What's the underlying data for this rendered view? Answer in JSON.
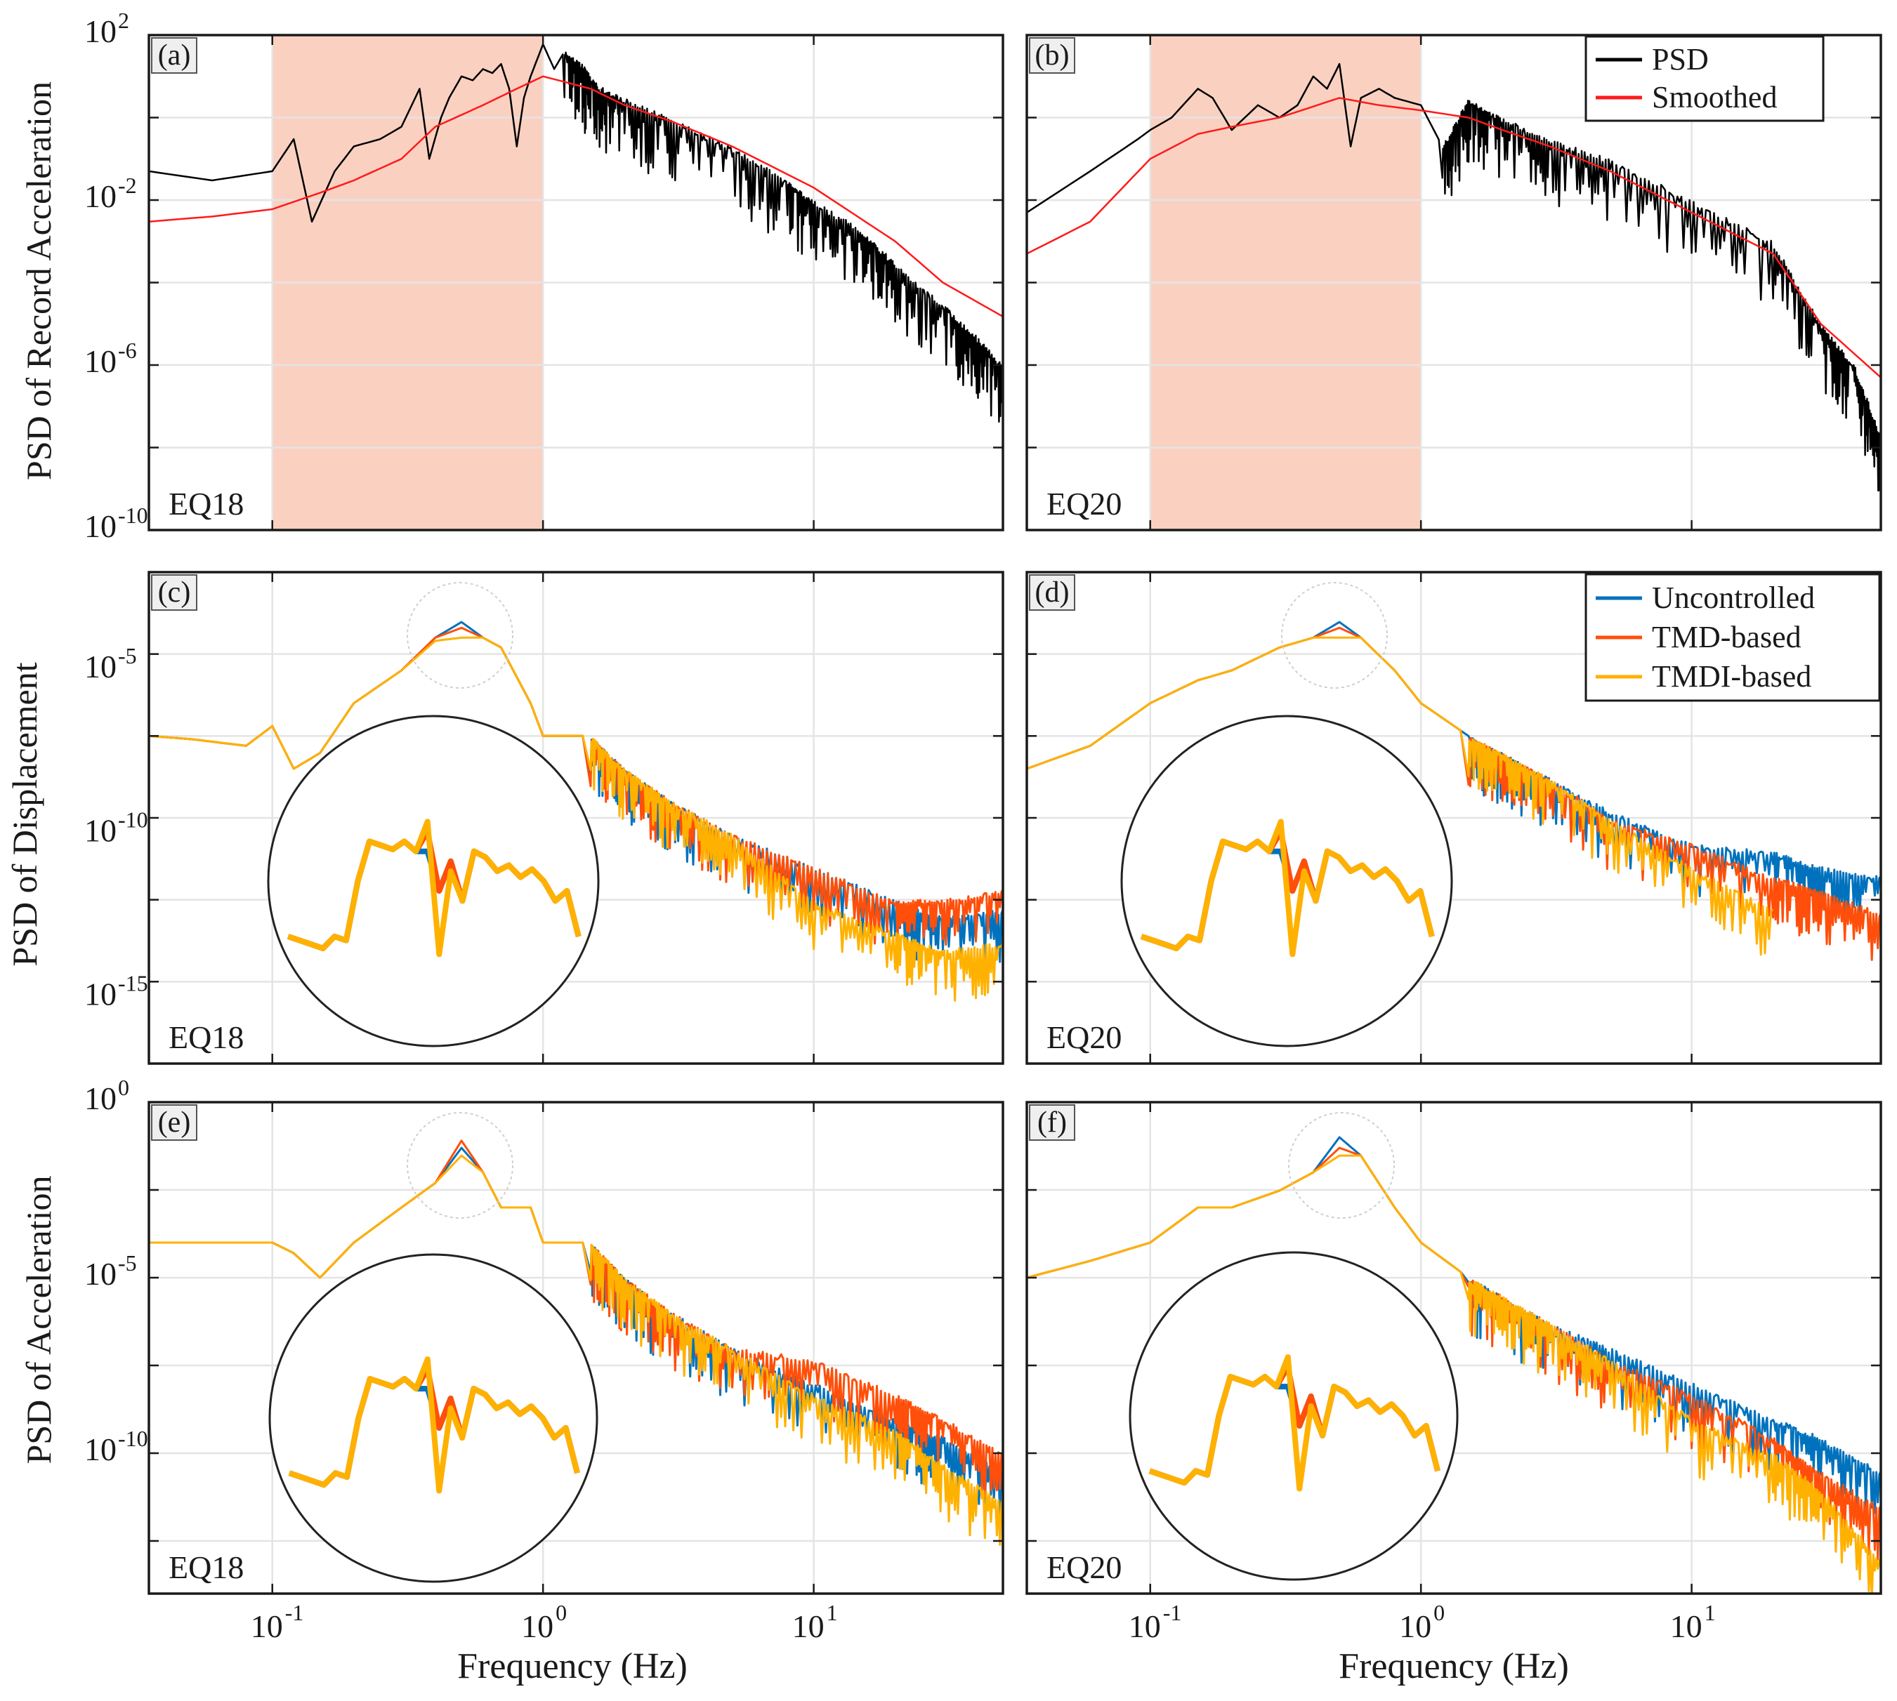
{
  "figure": {
    "ylabels": {
      "row1": "PSD of Record Acceleration",
      "row2": "PSD of Displacement",
      "row3": "PSD of Acceleration"
    },
    "xlabel": "Frequency (Hz)"
  },
  "legends": {
    "record": [
      {
        "name": "PSD",
        "color": "#000000"
      },
      {
        "name": "Smoothed",
        "color": "#ff1a1a"
      }
    ],
    "response": [
      {
        "name": "Uncontrolled",
        "color": "#0072bd"
      },
      {
        "name": "TMD-based",
        "color": "#ff4f0a"
      },
      {
        "name": "TMDI-based",
        "color": "#ffb100"
      }
    ]
  },
  "shading_color": "#f9c5b2",
  "chart_data": [
    {
      "panel": "a",
      "label": "(a)",
      "event": "EQ18",
      "type": "line",
      "ylabel": "PSD of Record Acceleration",
      "xscale": "log",
      "yscale": "log",
      "xlim": [
        0.035,
        50
      ],
      "ylim": [
        1e-10,
        100
      ],
      "ytick_base": "10",
      "ytick_exps": [
        "2",
        "-2",
        "-6",
        "-10"
      ],
      "yticks": [
        100,
        0.01,
        1e-06,
        1e-10
      ],
      "xtick_exps": [
        "-1",
        "0",
        "1"
      ],
      "xticks": [
        0.1,
        1,
        10
      ],
      "shaded_band": [
        0.1,
        1
      ],
      "series": [
        {
          "name": "PSD",
          "x": [
            0.035,
            0.06,
            0.08,
            0.1,
            0.12,
            0.14,
            0.17,
            0.2,
            0.25,
            0.3,
            0.35,
            0.38,
            0.42,
            0.45,
            0.5,
            0.55,
            0.6,
            0.65,
            0.7,
            0.75,
            0.8,
            0.85,
            0.9,
            1.0,
            1.1,
            1.2,
            1.4,
            1.6,
            2,
            3,
            5,
            8,
            10,
            15,
            20,
            30,
            40,
            50
          ],
          "y": [
            0.05,
            0.03,
            0.04,
            0.05,
            0.3,
            0.003,
            0.05,
            0.2,
            0.3,
            0.6,
            5,
            0.1,
            1,
            3,
            10,
            8,
            15,
            12,
            20,
            5,
            0.2,
            3,
            10,
            60,
            15,
            40,
            20,
            6,
            3,
            1,
            0.2,
            0.03,
            0.01,
            0.002,
            0.0003,
            3e-05,
            5e-06,
            1e-06
          ]
        },
        {
          "name": "Smoothed",
          "x": [
            0.035,
            0.06,
            0.1,
            0.15,
            0.2,
            0.3,
            0.4,
            0.6,
            0.8,
            1.0,
            1.5,
            2,
            3,
            5,
            10,
            20,
            30,
            50
          ],
          "y": [
            0.003,
            0.004,
            0.006,
            0.015,
            0.03,
            0.1,
            0.6,
            2,
            5,
            10,
            5,
            2,
            0.8,
            0.2,
            0.02,
            0.001,
            0.0001,
            1.5e-05
          ]
        }
      ]
    },
    {
      "panel": "b",
      "label": "(b)",
      "event": "EQ20",
      "type": "line",
      "ylabel": "PSD of Record Acceleration",
      "xscale": "log",
      "yscale": "log",
      "xlim": [
        0.035,
        50
      ],
      "ylim": [
        1e-10,
        100
      ],
      "shaded_band": [
        0.1,
        1
      ],
      "series": [
        {
          "name": "PSD",
          "x": [
            0.035,
            0.06,
            0.09,
            0.1,
            0.12,
            0.15,
            0.17,
            0.2,
            0.25,
            0.3,
            0.35,
            0.4,
            0.45,
            0.5,
            0.55,
            0.6,
            0.7,
            0.8,
            1.0,
            1.2,
            1.5,
            2,
            3,
            5,
            10,
            20,
            30,
            40,
            50
          ],
          "y": [
            0.005,
            0.05,
            0.3,
            0.5,
            1,
            5,
            3,
            0.5,
            2,
            1,
            2,
            10,
            5,
            20,
            0.2,
            3,
            5,
            3,
            2,
            0.2,
            3,
            1,
            0.3,
            0.1,
            0.01,
            0.001,
            1e-05,
            1e-06,
            2e-08
          ]
        },
        {
          "name": "Smoothed",
          "x": [
            0.035,
            0.06,
            0.1,
            0.15,
            0.2,
            0.3,
            0.5,
            0.7,
            1.0,
            1.5,
            2,
            3,
            5,
            10,
            20,
            30,
            50
          ],
          "y": [
            0.0005,
            0.003,
            0.1,
            0.4,
            0.6,
            1,
            3,
            2,
            1.5,
            1,
            0.5,
            0.2,
            0.05,
            0.005,
            0.0005,
            1e-05,
            5e-07
          ]
        }
      ]
    },
    {
      "panel": "c",
      "label": "(c)",
      "event": "EQ18",
      "type": "line",
      "ylabel": "PSD of Displacement",
      "xscale": "log",
      "yscale": "log",
      "xlim": [
        0.035,
        50
      ],
      "ylim": [
        1e-17,
        0.01
      ],
      "ytick_base": "10",
      "ytick_exps": [
        "-5",
        "-10",
        "-15"
      ],
      "yticks": [
        1e-05,
        1e-10,
        1e-15
      ],
      "series": [
        {
          "name": "Uncontrolled",
          "x": [
            0.035,
            0.05,
            0.08,
            0.1,
            0.12,
            0.15,
            0.2,
            0.3,
            0.4,
            0.5,
            0.6,
            0.7,
            0.9,
            1.0,
            1.5,
            2,
            3,
            5,
            10,
            20,
            30,
            50
          ],
          "y": [
            1e-07,
            8e-08,
            5e-08,
            2e-07,
            1e-08,
            3e-08,
            1e-06,
            1e-05,
            0.0001,
            0.0003,
            0.0001,
            5e-05,
            1e-06,
            1e-07,
            1e-07,
            1e-08,
            1e-09,
            1e-10,
            1e-11,
            1e-12,
            3e-13,
            5e-13
          ]
        },
        {
          "name": "TMD-based",
          "x": [
            0.035,
            0.05,
            0.08,
            0.1,
            0.12,
            0.15,
            0.2,
            0.3,
            0.4,
            0.5,
            0.6,
            0.7,
            0.9,
            1.0,
            1.5,
            2,
            3,
            5,
            10,
            20,
            30,
            50
          ],
          "y": [
            1e-07,
            8e-08,
            5e-08,
            2e-07,
            1e-08,
            3e-08,
            1e-06,
            1e-05,
            0.0001,
            0.0002,
            0.0001,
            5e-05,
            1e-06,
            1e-07,
            1e-07,
            1e-08,
            1e-09,
            1e-10,
            1e-11,
            1e-12,
            1e-12,
            2e-12
          ]
        },
        {
          "name": "TMDI-based",
          "x": [
            0.035,
            0.05,
            0.08,
            0.1,
            0.12,
            0.15,
            0.2,
            0.3,
            0.4,
            0.5,
            0.6,
            0.7,
            0.9,
            1.0,
            1.5,
            2,
            3,
            5,
            10,
            20,
            30,
            50
          ],
          "y": [
            1e-07,
            8e-08,
            5e-08,
            2e-07,
            1e-08,
            3e-08,
            1e-06,
            1e-05,
            8e-05,
            0.0001,
            0.0001,
            5e-05,
            1e-06,
            1e-07,
            1e-07,
            1e-08,
            1e-09,
            1e-10,
            1e-12,
            1e-13,
            3e-14,
            5e-14
          ]
        }
      ]
    },
    {
      "panel": "d",
      "label": "(d)",
      "event": "EQ20",
      "type": "line",
      "ylabel": "PSD of Displacement",
      "xscale": "log",
      "yscale": "log",
      "xlim": [
        0.035,
        50
      ],
      "ylim": [
        1e-17,
        0.01
      ],
      "series": [
        {
          "name": "Uncontrolled",
          "x": [
            0.035,
            0.06,
            0.1,
            0.15,
            0.2,
            0.3,
            0.4,
            0.5,
            0.6,
            0.8,
            1.0,
            1.5,
            2,
            3,
            5,
            10,
            20,
            30,
            50
          ],
          "y": [
            1e-08,
            5e-08,
            1e-06,
            5e-06,
            1e-05,
            5e-05,
            0.0001,
            0.0003,
            0.0001,
            1e-05,
            1e-06,
            1e-07,
            3e-08,
            5e-09,
            5e-10,
            5e-11,
            3e-11,
            1e-11,
            5e-12
          ]
        },
        {
          "name": "TMD-based",
          "x": [
            0.035,
            0.06,
            0.1,
            0.15,
            0.2,
            0.3,
            0.4,
            0.5,
            0.6,
            0.8,
            1.0,
            1.5,
            2,
            3,
            5,
            10,
            20,
            30,
            50
          ],
          "y": [
            1e-08,
            5e-08,
            1e-06,
            5e-06,
            1e-05,
            5e-05,
            0.0001,
            0.0002,
            0.0001,
            1e-05,
            1e-06,
            1e-07,
            3e-08,
            5e-09,
            3e-10,
            5e-11,
            5e-12,
            2e-12,
            4e-13
          ]
        },
        {
          "name": "TMDI-based",
          "x": [
            0.035,
            0.06,
            0.1,
            0.15,
            0.2,
            0.3,
            0.4,
            0.5,
            0.6,
            0.8,
            1.0,
            1.5,
            2,
            3,
            5,
            10,
            20
          ],
          "y": [
            1e-08,
            5e-08,
            1e-06,
            5e-06,
            1e-05,
            5e-05,
            0.0001,
            0.0001,
            0.0001,
            1e-05,
            1e-06,
            1e-07,
            3e-08,
            5e-09,
            3e-10,
            1e-11,
            5e-13
          ]
        }
      ]
    },
    {
      "panel": "e",
      "label": "(e)",
      "event": "EQ18",
      "type": "line",
      "ylabel": "PSD of Acceleration",
      "xscale": "log",
      "yscale": "log",
      "xlim": [
        0.035,
        50
      ],
      "ylim": [
        1e-14,
        1
      ],
      "ytick_base": "10",
      "ytick_exps": [
        "0",
        "-5",
        "-10"
      ],
      "yticks": [
        1,
        1e-05,
        1e-10
      ],
      "series": [
        {
          "name": "Uncontrolled",
          "x": [
            0.035,
            0.06,
            0.1,
            0.12,
            0.15,
            0.2,
            0.3,
            0.4,
            0.5,
            0.6,
            0.7,
            0.9,
            1.0,
            1.5,
            2,
            3,
            5,
            10,
            20,
            30,
            50
          ],
          "y": [
            0.0001,
            0.0001,
            0.0001,
            5e-05,
            1e-05,
            0.0001,
            0.001,
            0.005,
            0.05,
            0.01,
            0.001,
            0.001,
            0.0001,
            0.0001,
            1e-05,
            1e-06,
            1e-07,
            1e-08,
            1e-09,
            3e-10,
            3e-11
          ]
        },
        {
          "name": "TMD-based",
          "x": [
            0.035,
            0.06,
            0.1,
            0.12,
            0.15,
            0.2,
            0.3,
            0.4,
            0.5,
            0.6,
            0.7,
            0.9,
            1.0,
            1.5,
            2,
            3,
            5,
            10,
            20,
            30,
            50
          ],
          "y": [
            0.0001,
            0.0001,
            0.0001,
            5e-05,
            1e-05,
            0.0001,
            0.001,
            0.005,
            0.08,
            0.01,
            0.001,
            0.001,
            0.0001,
            0.0001,
            1e-05,
            1e-06,
            1e-07,
            5e-08,
            5e-09,
            1e-09,
            1e-10
          ]
        },
        {
          "name": "TMDI-based",
          "x": [
            0.035,
            0.06,
            0.1,
            0.12,
            0.15,
            0.2,
            0.3,
            0.4,
            0.5,
            0.6,
            0.7,
            0.9,
            1.0,
            1.5,
            2,
            3,
            5,
            10,
            20,
            30,
            50
          ],
          "y": [
            0.0001,
            0.0001,
            0.0001,
            5e-05,
            1e-05,
            0.0001,
            0.001,
            0.005,
            0.03,
            0.01,
            0.001,
            0.001,
            0.0001,
            0.0001,
            1e-05,
            1e-06,
            1e-07,
            5e-09,
            5e-10,
            5e-11,
            5e-12
          ]
        }
      ]
    },
    {
      "panel": "f",
      "label": "(f)",
      "event": "EQ20",
      "type": "line",
      "ylabel": "PSD of Acceleration",
      "xscale": "log",
      "yscale": "log",
      "xlim": [
        0.035,
        50
      ],
      "ylim": [
        1e-14,
        1
      ],
      "series": [
        {
          "name": "Uncontrolled",
          "x": [
            0.035,
            0.06,
            0.1,
            0.15,
            0.2,
            0.3,
            0.4,
            0.5,
            0.6,
            0.8,
            1.0,
            1.5,
            2,
            3,
            5,
            10,
            20,
            30,
            50
          ],
          "y": [
            1e-05,
            3e-05,
            0.0001,
            0.001,
            0.001,
            0.003,
            0.01,
            0.1,
            0.03,
            0.001,
            0.0001,
            1e-05,
            3e-06,
            5e-07,
            1e-07,
            1e-08,
            1e-09,
            3e-10,
            3e-11
          ]
        },
        {
          "name": "TMD-based",
          "x": [
            0.035,
            0.06,
            0.1,
            0.15,
            0.2,
            0.3,
            0.4,
            0.5,
            0.6,
            0.8,
            1.0,
            1.5,
            2,
            3,
            5,
            10,
            20,
            30,
            50
          ],
          "y": [
            1e-05,
            3e-05,
            0.0001,
            0.001,
            0.001,
            0.003,
            0.01,
            0.05,
            0.03,
            0.001,
            0.0001,
            1e-05,
            3e-06,
            5e-07,
            5e-08,
            5e-09,
            3e-10,
            3e-11,
            3e-12
          ]
        },
        {
          "name": "TMDI-based",
          "x": [
            0.035,
            0.06,
            0.1,
            0.15,
            0.2,
            0.3,
            0.4,
            0.5,
            0.6,
            0.8,
            1.0,
            1.5,
            2,
            3,
            5,
            10,
            20,
            30,
            50
          ],
          "y": [
            1e-05,
            3e-05,
            0.0001,
            0.001,
            0.001,
            0.003,
            0.01,
            0.03,
            0.03,
            0.001,
            0.0001,
            1e-05,
            3e-06,
            5e-07,
            5e-08,
            1e-09,
            1e-10,
            1e-11,
            1e-13
          ]
        }
      ]
    }
  ]
}
